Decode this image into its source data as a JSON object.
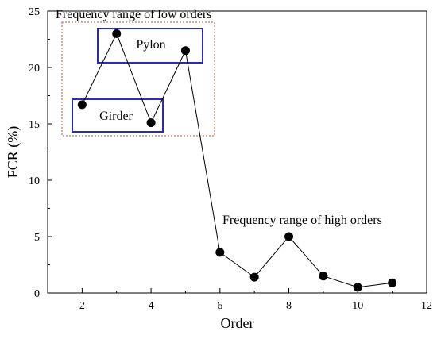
{
  "chart_data": {
    "type": "line",
    "xlabel": "Order",
    "ylabel": "FCR (%)",
    "xlim": [
      1,
      12
    ],
    "ylim": [
      0,
      25
    ],
    "xticks": [
      2,
      4,
      6,
      8,
      10,
      12
    ],
    "yticks": [
      0,
      5,
      10,
      15,
      20,
      25
    ],
    "grid": false,
    "series": [
      {
        "x": [
          2,
          3,
          4,
          5,
          6,
          7,
          8,
          9,
          10,
          11
        ],
        "values": [
          16.7,
          23.0,
          15.1,
          21.5,
          3.6,
          1.4,
          5.0,
          1.5,
          0.5,
          0.9
        ]
      }
    ],
    "annotations": {
      "low_range": "Frequency range of low orders",
      "pylon": "Pylon",
      "girder": "Girder",
      "high_range": "Frequency range of high orders"
    },
    "colors": {
      "line": "#000000",
      "marker": "#000000",
      "low_range_box": "#b05a3c",
      "mode_box": "#2b2bb8"
    }
  }
}
